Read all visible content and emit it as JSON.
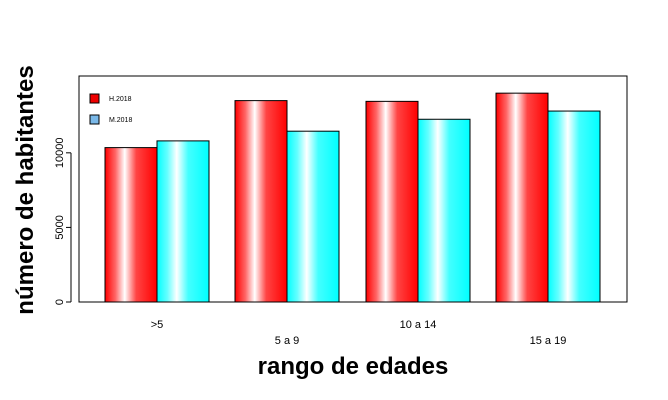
{
  "chart_data": {
    "type": "bar",
    "categories": [
      ">5",
      "5 a 9",
      "10 a 14",
      "15 a 19"
    ],
    "series": [
      {
        "name": "H.2018",
        "values": [
          10350,
          13500,
          13450,
          14000
        ],
        "color": "#ff0000",
        "legend_color": "#ee0000"
      },
      {
        "name": "M.2018",
        "values": [
          10800,
          11450,
          12250,
          12800
        ],
        "color": "#00ffff",
        "legend_color": "#7ab8e8"
      }
    ],
    "xlabel": "rango de edades",
    "ylabel": "número de habitantes",
    "yticks": [
      0,
      5000,
      10000
    ],
    "ylim": [
      0,
      15150
    ],
    "grid": false,
    "legend_position": "top-left"
  }
}
